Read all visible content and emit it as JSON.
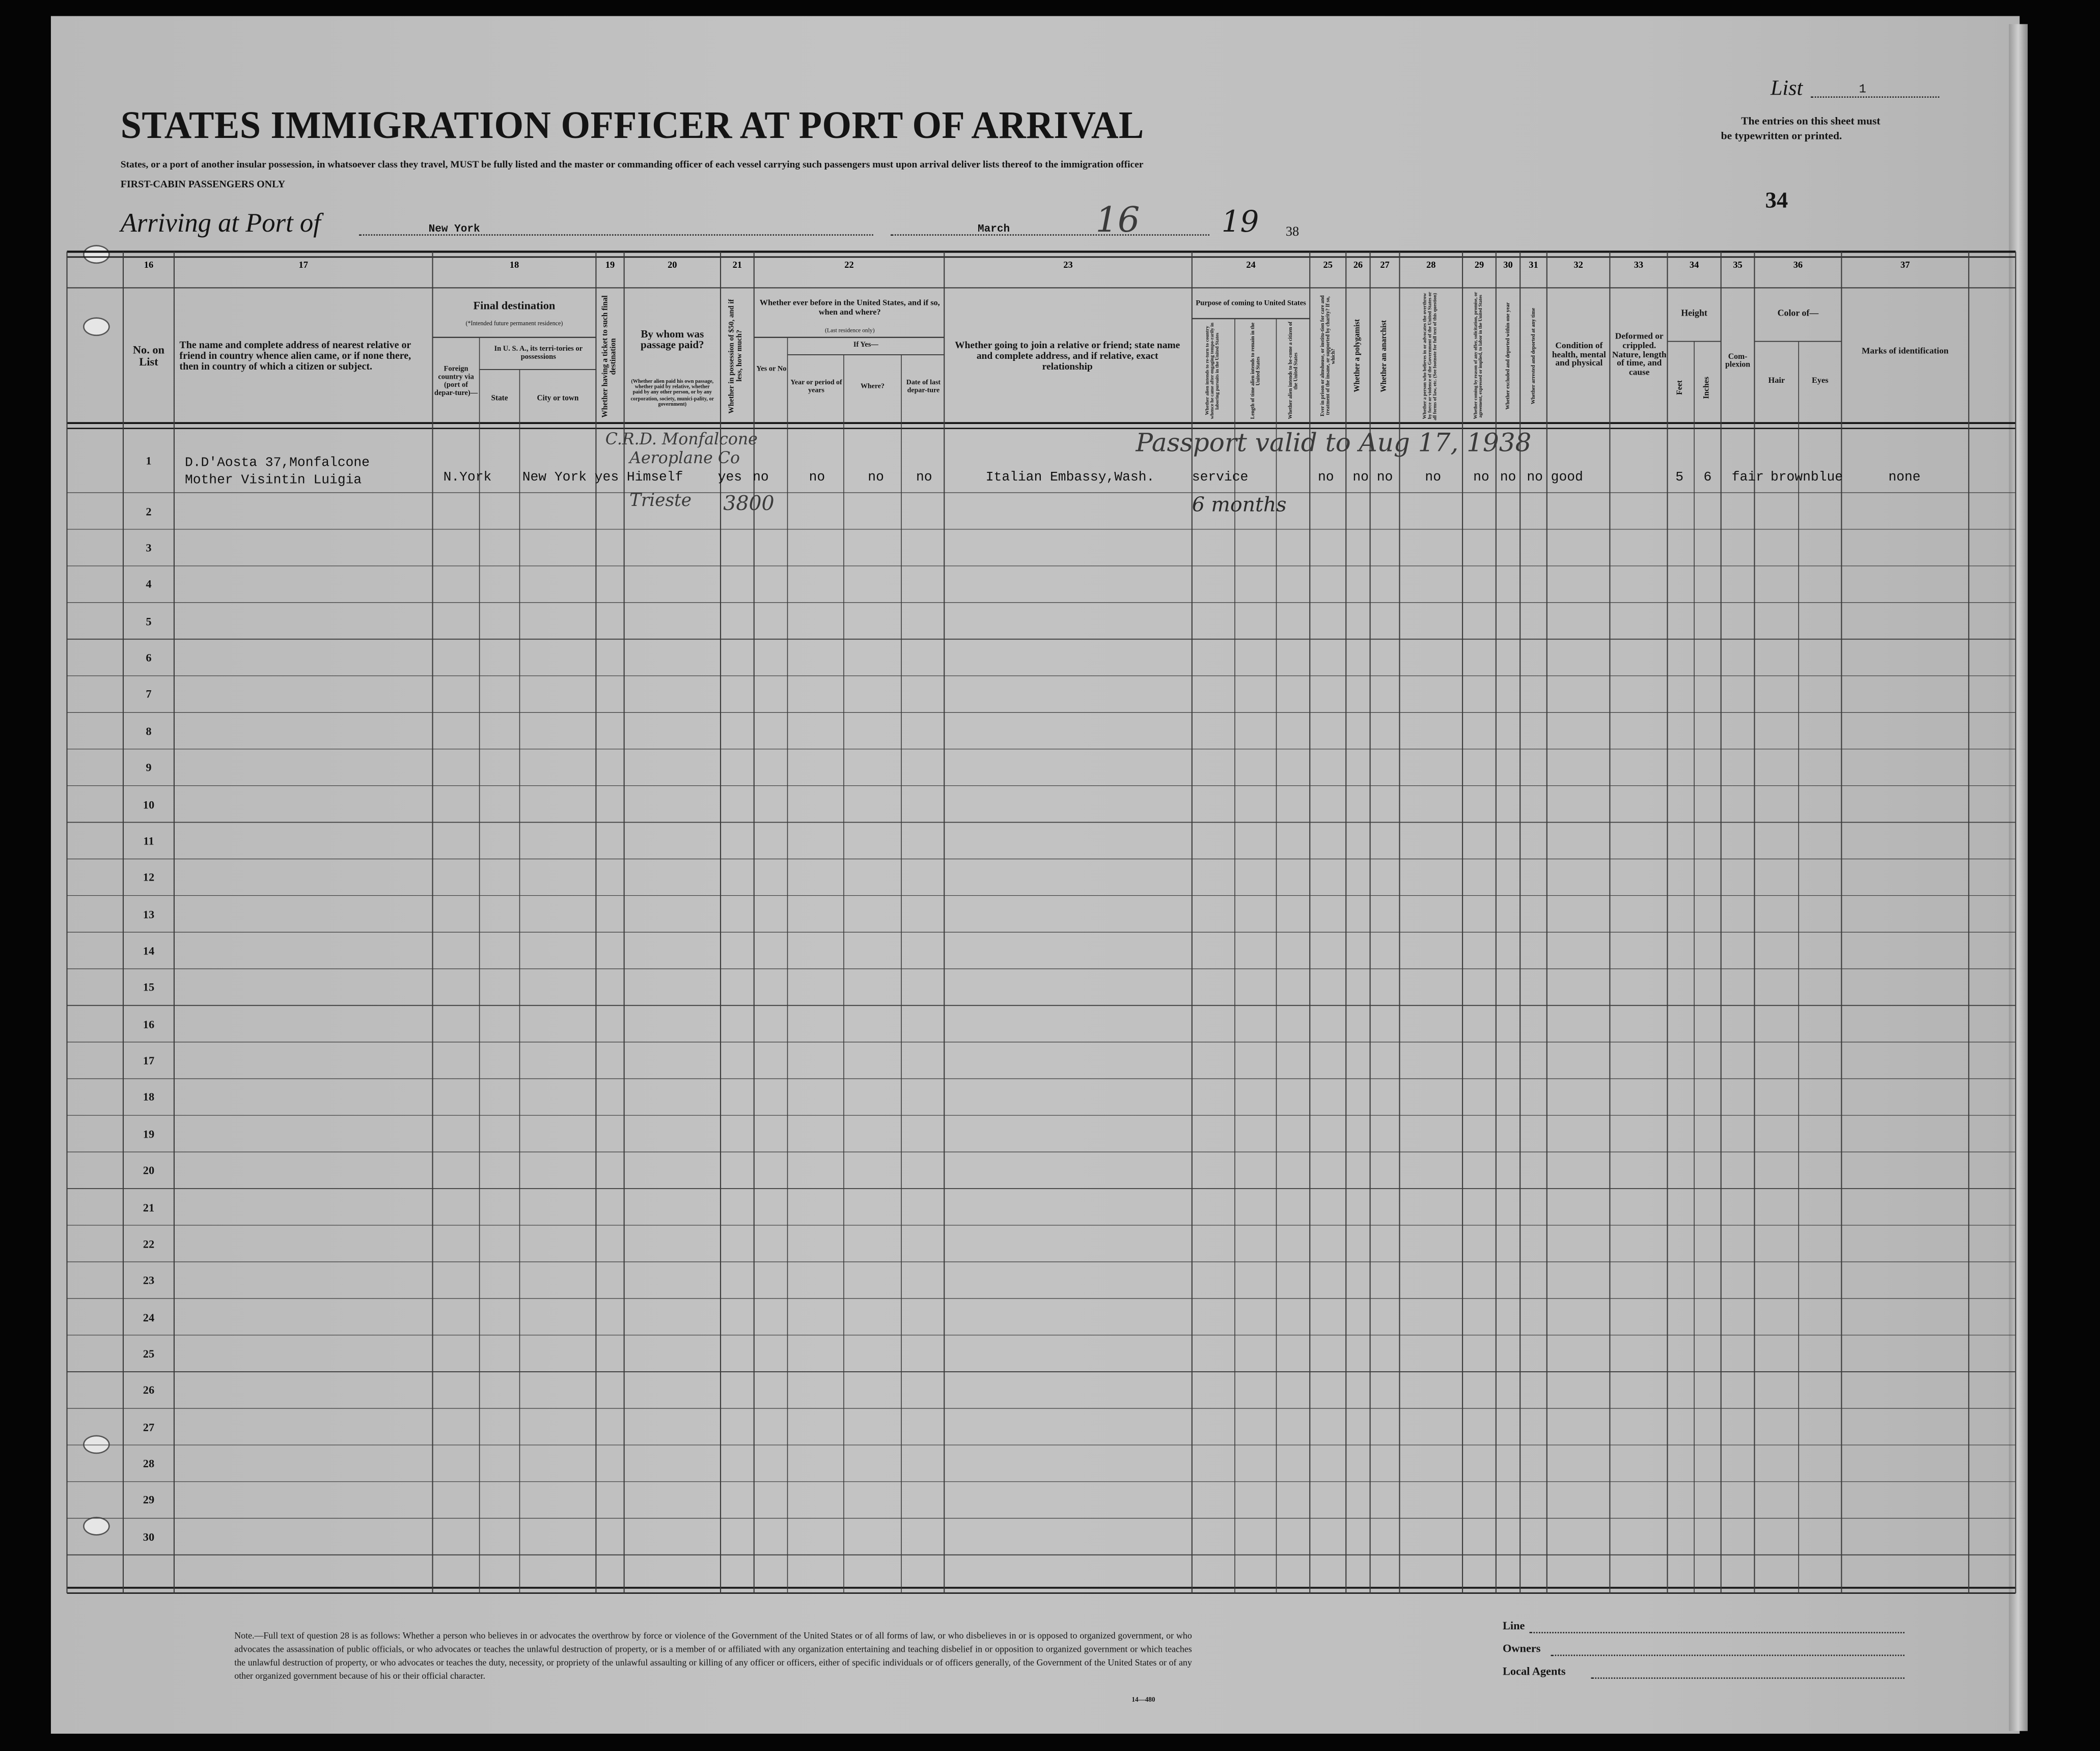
{
  "header": {
    "title": "STATES IMMIGRATION OFFICER AT PORT OF ARRIVAL",
    "subtitle": "States, or a port of another insular possession, in whatsoever class they travel, MUST be fully listed and the master or commanding officer of each vessel carrying such passengers must upon arrival deliver lists thereof to the immigration officer",
    "class_label": "FIRST-CABIN PASSENGERS ONLY",
    "arriving_label": "Arriving at Port of",
    "port": "New York",
    "month": "March",
    "day": "16",
    "year_prefix": "19",
    "year_suffix": "38",
    "list_label": "List",
    "list_number": "1",
    "entries_note_1": "The entries on this sheet must",
    "entries_note_2": "be typewritten or printed.",
    "page_number": "34"
  },
  "columns": {
    "numbers": [
      "16",
      "17",
      "18",
      "19",
      "20",
      "21",
      "22",
      "23",
      "24",
      "25",
      "26",
      "27",
      "28",
      "29",
      "30",
      "31",
      "32",
      "33",
      "34",
      "35",
      "36",
      "37"
    ],
    "c16": "No. on List",
    "c17": "The name and complete address of nearest relative or friend in country whence alien came, or if none there, then in country of which a citizen or subject.",
    "c18_title": "Final destination",
    "c18_sub": "(*Intended future permanent residence)",
    "c18_foreign": "Foreign country via (port of depar-ture)—",
    "c18_usa": "In U. S. A., its terri-tories or possessions",
    "c18_state": "State",
    "c18_city": "City or town",
    "c19": "Whether having a ticket to such final destination",
    "c20_title": "By whom was passage paid?",
    "c20_sub": "(Whether alien paid his own passage, whether paid by relative, whether paid by any other person, or by any corporation, society, munici-pality, or government)",
    "c21": "Whether in possession of $50, and if less, how much?",
    "c22_title": "Whether ever before in the United States, and if so, when and where?",
    "c22_sub": "(Last residence only)",
    "c22_yesno": "Yes or No",
    "c22_ifyes": "If Yes—",
    "c22_year": "Year or period of years",
    "c22_where": "Where?",
    "c22_date": "Date of last depar-ture",
    "c23": "Whether going to join a relative or friend; state name and complete address, and if relative, exact relationship",
    "c24_title": "Purpose of coming to United States",
    "c24_a": "Whether alien intends to re-turn to country whence he came after engaging tempo-rarily in laboring pursuits in the United States",
    "c24_b": "Length of time alien intends to remain in the United States",
    "c24_c": "Whether alien intends to be-come a citizen of the United States",
    "c25": "Ever in prison or almshouse, or institu-tion for care and treatment of the insane, or supported by charity? If so, which?",
    "c26": "Whether a polygamist",
    "c27": "Whether an anarchist",
    "c28": "Whether a person who believes in or advocates the overthrow by force or violence of the Government of the United States or all forms of law, etc. (See footnote for full text of this question)",
    "c29": "Whether coming by reason of any offer, solicitation, promise, or agreement, expressed or implied, to labor in the United States",
    "c30": "Whether excluded and deported within one year",
    "c31": "Whether arrested and deported at any time",
    "c32": "Condition of health, mental and physical",
    "c33": "Deformed or crippled. Nature, length of time, and cause",
    "c34_title": "Height",
    "c34_feet": "Feet",
    "c34_inches": "Inches",
    "c35": "Com-plexion",
    "c36_title": "Color of—",
    "c36_hair": "Hair",
    "c36_eyes": "Eyes",
    "c37": "Marks of identification"
  },
  "row_numbers": [
    "1",
    "2",
    "3",
    "4",
    "5",
    "6",
    "7",
    "8",
    "9",
    "10",
    "11",
    "12",
    "13",
    "14",
    "15",
    "16",
    "17",
    "18",
    "19",
    "20",
    "21",
    "22",
    "23",
    "24",
    "25",
    "26",
    "27",
    "28",
    "29",
    "30"
  ],
  "entry": {
    "relative_line1": "D.D'Aosta 37,Monfalcone",
    "relative_line2": "Mother Visintin Luigia",
    "state": "N.York",
    "city": "New York",
    "ticket": "yes",
    "paid_by": "Himself",
    "has_50": "yes",
    "before_yesno": "no",
    "before_year": "no",
    "before_where": "no",
    "before_date": "no",
    "joining": "Italian Embassy,Wash.",
    "purpose": "service",
    "prison": "no",
    "polygamist": "no",
    "anarchist": "no",
    "q28": "no",
    "q29": "no",
    "q30": "no",
    "q31": "no",
    "health": "good",
    "feet": "5",
    "inches": "6",
    "complexion": "fair",
    "hair": "brown",
    "eyes": "blue",
    "marks": "none"
  },
  "handwriting": {
    "paid_note_1": "C.R.D. Monfalcone",
    "paid_note_2": "Aeroplane Co",
    "paid_note_3": "Trieste",
    "money": "3800",
    "passport": "Passport valid to Aug 17, 1938",
    "length_stay": "6 months"
  },
  "footer": {
    "note": "Note.—Full text of question 28 is as follows: Whether a person who believes in or advocates the overthrow by force or violence of the Government of the United States or of all forms of law, or who disbelieves in or is opposed to organized government, or who advocates the assassination of public officials, or who advocates or teaches the unlawful destruction of property, or is a member of or affiliated with any organization entertaining and teaching disbelief in or opposition to organized government or which teaches the unlawful destruction of property, or who advocates or teaches the duty, necessity, or propriety of the unlawful assaulting or killing of any officer or officers, either of specific individuals or of officers generally, of the Government of the United States or of any other organized government because of his or their official character.",
    "form_number": "14—480",
    "line_label": "Line",
    "owners_label": "Owners",
    "agents_label": "Local Agents"
  }
}
